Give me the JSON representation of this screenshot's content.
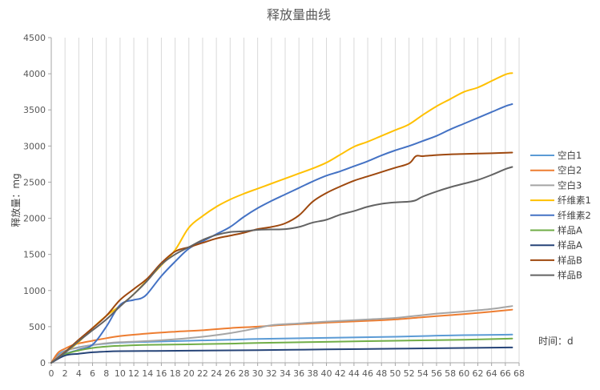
{
  "chart_data": {
    "type": "line",
    "title": "释放量曲线",
    "xlabel": "时间：d",
    "ylabel": "释放量：mg",
    "xlim": [
      0,
      68
    ],
    "ylim": [
      0,
      4500
    ],
    "x_ticks": [
      0,
      2,
      4,
      6,
      8,
      10,
      12,
      14,
      16,
      18,
      20,
      22,
      24,
      26,
      28,
      30,
      32,
      34,
      36,
      38,
      40,
      42,
      44,
      46,
      48,
      50,
      52,
      54,
      56,
      58,
      60,
      62,
      64,
      66,
      68
    ],
    "y_ticks": [
      0,
      500,
      1000,
      1500,
      2000,
      2500,
      3000,
      3500,
      4000,
      4500
    ],
    "grid": "vertical",
    "legend_position": "right",
    "series": [
      {
        "name": "空白1",
        "color": "#5B9BD5",
        "points": [
          [
            0,
            0
          ],
          [
            1,
            110
          ],
          [
            2,
            165
          ],
          [
            4,
            215
          ],
          [
            6,
            245
          ],
          [
            8,
            265
          ],
          [
            10,
            278
          ],
          [
            14,
            290
          ],
          [
            20,
            305
          ],
          [
            26,
            318
          ],
          [
            30,
            330
          ],
          [
            40,
            345
          ],
          [
            50,
            360
          ],
          [
            56,
            375
          ],
          [
            60,
            382
          ],
          [
            67,
            390
          ]
        ]
      },
      {
        "name": "空白2",
        "color": "#ED7D31",
        "points": [
          [
            0,
            0
          ],
          [
            1,
            140
          ],
          [
            2,
            195
          ],
          [
            3,
            240
          ],
          [
            4,
            268
          ],
          [
            6,
            305
          ],
          [
            8,
            340
          ],
          [
            10,
            370
          ],
          [
            14,
            405
          ],
          [
            18,
            430
          ],
          [
            22,
            450
          ],
          [
            26,
            480
          ],
          [
            30,
            500
          ],
          [
            34,
            525
          ],
          [
            40,
            555
          ],
          [
            46,
            580
          ],
          [
            50,
            600
          ],
          [
            54,
            630
          ],
          [
            58,
            660
          ],
          [
            62,
            690
          ],
          [
            67,
            735
          ]
        ]
      },
      {
        "name": "空白3",
        "color": "#A5A5A5",
        "points": [
          [
            0,
            0
          ],
          [
            2,
            160
          ],
          [
            4,
            210
          ],
          [
            6,
            245
          ],
          [
            8,
            270
          ],
          [
            10,
            285
          ],
          [
            14,
            300
          ],
          [
            18,
            325
          ],
          [
            22,
            360
          ],
          [
            26,
            410
          ],
          [
            30,
            480
          ],
          [
            32,
            520
          ],
          [
            36,
            545
          ],
          [
            40,
            570
          ],
          [
            46,
            600
          ],
          [
            50,
            620
          ],
          [
            52,
            640
          ],
          [
            54,
            660
          ],
          [
            56,
            680
          ],
          [
            60,
            710
          ],
          [
            64,
            745
          ],
          [
            67,
            785
          ]
        ]
      },
      {
        "name": "纤维素1",
        "color": "#FFC000",
        "points": [
          [
            0,
            0
          ],
          [
            2,
            140
          ],
          [
            4,
            290
          ],
          [
            6,
            480
          ],
          [
            8,
            650
          ],
          [
            10,
            790
          ],
          [
            12,
            950
          ],
          [
            14,
            1150
          ],
          [
            16,
            1350
          ],
          [
            18,
            1560
          ],
          [
            20,
            1870
          ],
          [
            22,
            2030
          ],
          [
            24,
            2160
          ],
          [
            26,
            2260
          ],
          [
            28,
            2340
          ],
          [
            30,
            2410
          ],
          [
            32,
            2480
          ],
          [
            34,
            2550
          ],
          [
            36,
            2620
          ],
          [
            38,
            2690
          ],
          [
            40,
            2770
          ],
          [
            42,
            2880
          ],
          [
            44,
            2990
          ],
          [
            46,
            3060
          ],
          [
            48,
            3140
          ],
          [
            50,
            3220
          ],
          [
            52,
            3300
          ],
          [
            54,
            3430
          ],
          [
            56,
            3550
          ],
          [
            58,
            3650
          ],
          [
            60,
            3750
          ],
          [
            62,
            3810
          ],
          [
            64,
            3900
          ],
          [
            66,
            3990
          ],
          [
            67,
            4010
          ]
        ]
      },
      {
        "name": "纤维素2",
        "color": "#4472C4",
        "points": [
          [
            0,
            0
          ],
          [
            2,
            120
          ],
          [
            4,
            180
          ],
          [
            6,
            250
          ],
          [
            8,
            500
          ],
          [
            10,
            800
          ],
          [
            12,
            870
          ],
          [
            13,
            890
          ],
          [
            14,
            960
          ],
          [
            16,
            1200
          ],
          [
            18,
            1400
          ],
          [
            20,
            1580
          ],
          [
            22,
            1680
          ],
          [
            24,
            1780
          ],
          [
            26,
            1880
          ],
          [
            28,
            2020
          ],
          [
            30,
            2140
          ],
          [
            32,
            2240
          ],
          [
            34,
            2330
          ],
          [
            36,
            2420
          ],
          [
            38,
            2510
          ],
          [
            40,
            2590
          ],
          [
            42,
            2650
          ],
          [
            44,
            2720
          ],
          [
            46,
            2790
          ],
          [
            48,
            2870
          ],
          [
            50,
            2940
          ],
          [
            52,
            3000
          ],
          [
            54,
            3070
          ],
          [
            56,
            3140
          ],
          [
            58,
            3230
          ],
          [
            60,
            3310
          ],
          [
            62,
            3390
          ],
          [
            64,
            3470
          ],
          [
            66,
            3550
          ],
          [
            67,
            3580
          ]
        ]
      },
      {
        "name": "样品A",
        "color": "#70AD47",
        "points": [
          [
            0,
            0
          ],
          [
            2,
            115
          ],
          [
            4,
            170
          ],
          [
            6,
            205
          ],
          [
            8,
            225
          ],
          [
            10,
            235
          ],
          [
            14,
            248
          ],
          [
            20,
            255
          ],
          [
            26,
            265
          ],
          [
            30,
            275
          ],
          [
            40,
            290
          ],
          [
            50,
            305
          ],
          [
            60,
            318
          ],
          [
            67,
            335
          ]
        ]
      },
      {
        "name": "样品A",
        "color": "#264478",
        "points": [
          [
            0,
            0
          ],
          [
            2,
            100
          ],
          [
            4,
            125
          ],
          [
            6,
            145
          ],
          [
            8,
            155
          ],
          [
            10,
            160
          ],
          [
            14,
            163
          ],
          [
            20,
            168
          ],
          [
            30,
            175
          ],
          [
            40,
            185
          ],
          [
            50,
            195
          ],
          [
            60,
            205
          ],
          [
            67,
            212
          ]
        ]
      },
      {
        "name": "样品B",
        "color": "#9E480E",
        "points": [
          [
            0,
            0
          ],
          [
            2,
            150
          ],
          [
            4,
            320
          ],
          [
            6,
            480
          ],
          [
            8,
            650
          ],
          [
            10,
            870
          ],
          [
            12,
            1020
          ],
          [
            14,
            1170
          ],
          [
            16,
            1380
          ],
          [
            18,
            1540
          ],
          [
            20,
            1600
          ],
          [
            22,
            1660
          ],
          [
            24,
            1720
          ],
          [
            26,
            1760
          ],
          [
            28,
            1800
          ],
          [
            30,
            1850
          ],
          [
            32,
            1880
          ],
          [
            34,
            1930
          ],
          [
            36,
            2040
          ],
          [
            38,
            2230
          ],
          [
            40,
            2350
          ],
          [
            42,
            2440
          ],
          [
            44,
            2520
          ],
          [
            46,
            2580
          ],
          [
            48,
            2640
          ],
          [
            50,
            2700
          ],
          [
            52,
            2760
          ],
          [
            53,
            2860
          ],
          [
            54,
            2860
          ],
          [
            56,
            2875
          ],
          [
            58,
            2885
          ],
          [
            60,
            2890
          ],
          [
            62,
            2895
          ],
          [
            64,
            2900
          ],
          [
            67,
            2910
          ]
        ]
      },
      {
        "name": "样品B",
        "color": "#636363",
        "points": [
          [
            0,
            0
          ],
          [
            2,
            140
          ],
          [
            4,
            300
          ],
          [
            6,
            450
          ],
          [
            8,
            600
          ],
          [
            10,
            780
          ],
          [
            12,
            950
          ],
          [
            14,
            1140
          ],
          [
            16,
            1360
          ],
          [
            18,
            1500
          ],
          [
            20,
            1600
          ],
          [
            22,
            1700
          ],
          [
            24,
            1770
          ],
          [
            26,
            1810
          ],
          [
            28,
            1820
          ],
          [
            30,
            1840
          ],
          [
            32,
            1845
          ],
          [
            34,
            1850
          ],
          [
            36,
            1880
          ],
          [
            38,
            1940
          ],
          [
            40,
            1980
          ],
          [
            42,
            2050
          ],
          [
            44,
            2100
          ],
          [
            46,
            2160
          ],
          [
            48,
            2200
          ],
          [
            50,
            2220
          ],
          [
            52,
            2230
          ],
          [
            53,
            2250
          ],
          [
            54,
            2300
          ],
          [
            56,
            2370
          ],
          [
            58,
            2430
          ],
          [
            60,
            2480
          ],
          [
            62,
            2530
          ],
          [
            64,
            2600
          ],
          [
            66,
            2680
          ],
          [
            67,
            2710
          ]
        ]
      }
    ]
  }
}
